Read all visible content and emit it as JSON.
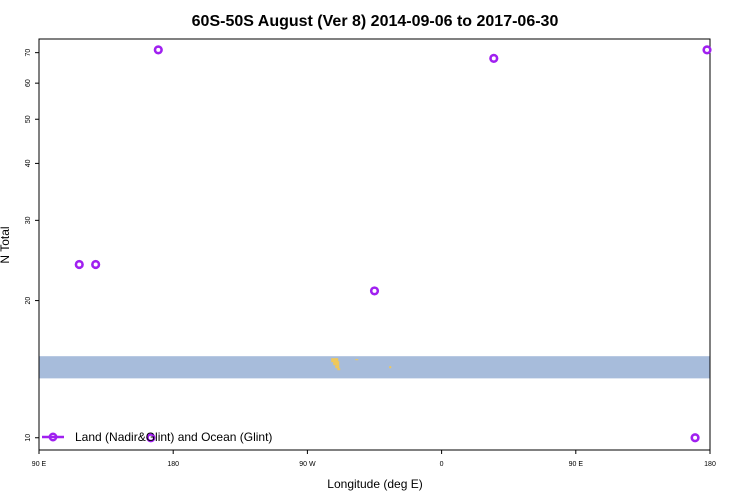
{
  "chart_data": {
    "type": "scatter",
    "title": "60S-50S August (Ver 8)   2014-09-06 to 2017-06-30",
    "xlabel": "Longitude (deg E)",
    "ylabel": "N Total",
    "x_scale": "longitude, 90 E to 180 (wrapping through 180, 90 W, 0, 90 E)",
    "y_scale": "log",
    "xlim": [
      90,
      180
    ],
    "ylim": [
      9.4,
      75
    ],
    "x_ticks": [
      {
        "lon": 90,
        "label": "90 E"
      },
      {
        "lon": 180,
        "label": "180"
      },
      {
        "lon": -90,
        "label": "90 W"
      },
      {
        "lon": 0,
        "label": "0"
      },
      {
        "lon": 90,
        "label": "90 E",
        "wrapped": true
      },
      {
        "lon": 180,
        "label": "180",
        "wrapped": true
      }
    ],
    "y_ticks": [
      10,
      20,
      30,
      40,
      50,
      60,
      70
    ],
    "series": [
      {
        "name": "Land (Nadir&Glint) and Ocean (Glint)",
        "color": "#a020f0",
        "marker": "open-circle",
        "points": [
          {
            "lon": 117,
            "y": 24
          },
          {
            "lon": 165,
            "y": 10
          },
          {
            "lon": 170,
            "y": 71
          },
          {
            "lon": -45,
            "y": 21
          },
          {
            "lon": 35,
            "y": 68
          },
          {
            "lon": 128,
            "y": 24
          },
          {
            "lon": 170,
            "y": 10,
            "wrapped": true
          },
          {
            "lon": 178,
            "y": 71,
            "wrapped": true
          }
        ]
      }
    ],
    "background_band": {
      "y_range": [
        13.5,
        15.1
      ],
      "color": "#a7bcdb"
    },
    "land_marks": {
      "color": "#f0c85a",
      "near_lon": -70
    },
    "legend_position": "bottom-left",
    "grid": false
  }
}
